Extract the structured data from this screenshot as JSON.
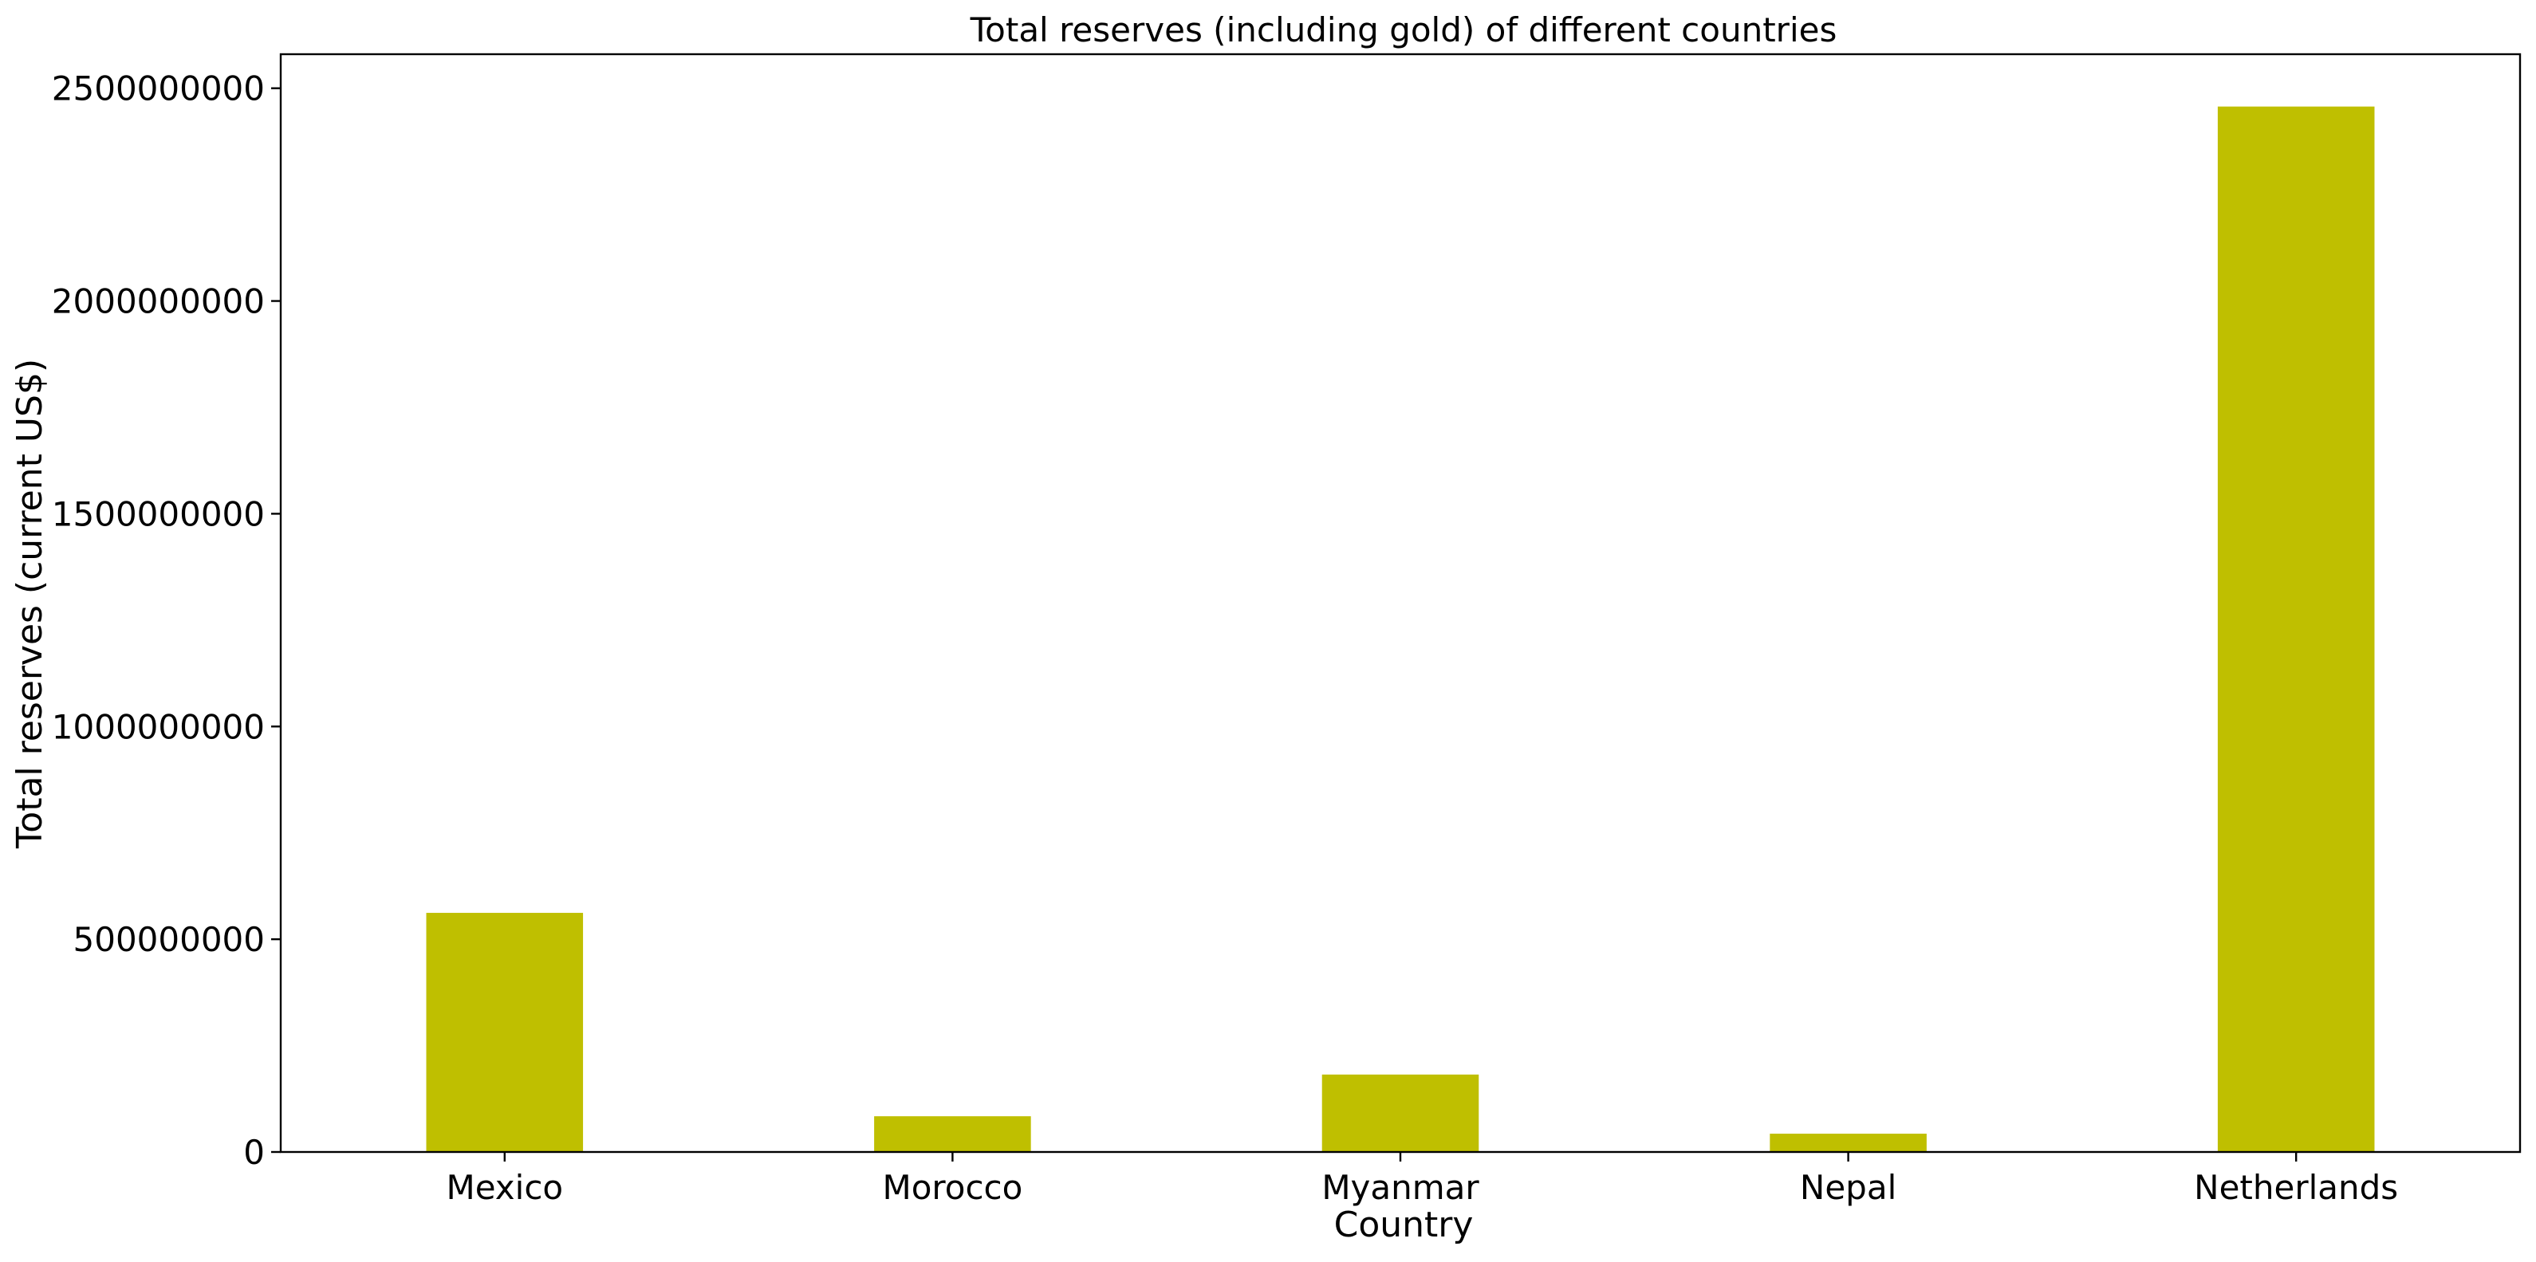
{
  "chart_data": {
    "type": "bar",
    "title": "Total reserves (including gold) of different countries",
    "xlabel": "Country",
    "ylabel": "Total reserves (current US$)",
    "categories": [
      "Mexico",
      "Morocco",
      "Myanmar",
      "Nepal",
      "Netherlands"
    ],
    "values": [
      562000000,
      84000000,
      182000000,
      43000000,
      2457000000
    ],
    "ylim": [
      0,
      2580000000
    ],
    "yticks": [
      0,
      500000000,
      1000000000,
      1500000000,
      2000000000,
      2500000000
    ],
    "ytick_labels": [
      "0",
      "500000000",
      "1000000000",
      "1500000000",
      "2000000000",
      "2500000000"
    ],
    "bar_color": "#bfbf00",
    "grid": false,
    "legend": "none"
  }
}
